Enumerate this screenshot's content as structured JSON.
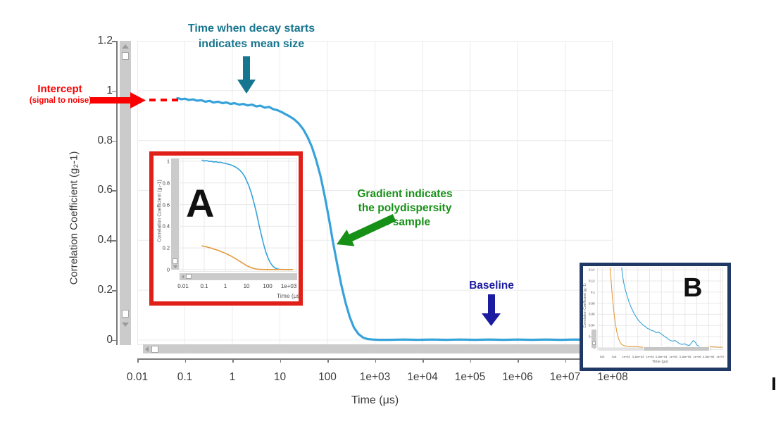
{
  "figure": {
    "xlabel": "Time (μs)",
    "ylabel": "Correlation Coefficient (g₂-1)"
  },
  "annotations": {
    "decay": {
      "line1": "Time when decay starts",
      "line2": "indicates mean size",
      "color": "#17768f"
    },
    "intercept": {
      "title": "Intercept",
      "subtitle": "(signal to noise)",
      "color": "#fb0000"
    },
    "gradient": {
      "line1": "Gradient indicates",
      "line2": "the polydispersity",
      "line3": "of sample",
      "color": "#169016"
    },
    "baseline": {
      "text": "Baseline",
      "color": "#1c1ca0"
    }
  },
  "insets": {
    "a": {
      "label": "A",
      "border_color": "#e02018"
    },
    "b": {
      "label": "B",
      "border_color": "#203864"
    }
  },
  "colors": {
    "curve_blue": "#36a2da",
    "curve_orange": "#e59a3c",
    "grid": "#ebebeb",
    "scrollbar": "#cbcbcb"
  },
  "chart_data": [
    {
      "type": "line",
      "xscale": "log",
      "xlabel": "Time (μs)",
      "ylabel": "Correlation Coefficient (g₂-1)",
      "xlim": [
        0.01,
        100000000.0
      ],
      "ylim": [
        -0.02,
        1.2
      ],
      "grid": true,
      "grid_color": "#ebebeb",
      "legend": "none",
      "xticks": [
        {
          "v": 0.01,
          "label": "0.01"
        },
        {
          "v": 0.1,
          "label": "0.1"
        },
        {
          "v": 1,
          "label": "1"
        },
        {
          "v": 10,
          "label": "10"
        },
        {
          "v": 100,
          "label": "100"
        },
        {
          "v": 1000,
          "label": "1e+03"
        },
        {
          "v": 10000,
          "label": "1e+04"
        },
        {
          "v": 100000,
          "label": "1e+05"
        },
        {
          "v": 1000000,
          "label": "1e+06"
        },
        {
          "v": 10000000,
          "label": "1e+07"
        },
        {
          "v": 100000000,
          "label": "1e+08"
        }
      ],
      "yticks": [
        {
          "v": 0,
          "label": "0"
        },
        {
          "v": 0.2,
          "label": "0.2"
        },
        {
          "v": 0.4,
          "label": "0.4"
        },
        {
          "v": 0.6,
          "label": "0.6"
        },
        {
          "v": 0.8,
          "label": "0.8"
        },
        {
          "v": 1,
          "label": "1"
        },
        {
          "v": 1.2,
          "label": "1.2"
        }
      ],
      "series": [
        {
          "name": "correlation-curve",
          "color": "#36a2da",
          "width": 3.2,
          "points": [
            [
              0.07,
              0.97
            ],
            [
              0.085,
              0.966
            ],
            [
              0.1,
              0.968
            ],
            [
              0.12,
              0.963
            ],
            [
              0.15,
              0.965
            ],
            [
              0.18,
              0.96
            ],
            [
              0.22,
              0.962
            ],
            [
              0.27,
              0.956
            ],
            [
              0.33,
              0.959
            ],
            [
              0.4,
              0.953
            ],
            [
              0.5,
              0.956
            ],
            [
              0.62,
              0.95
            ],
            [
              0.75,
              0.953
            ],
            [
              0.92,
              0.947
            ],
            [
              1.1,
              0.95
            ],
            [
              1.4,
              0.944
            ],
            [
              1.7,
              0.947
            ],
            [
              2.1,
              0.941
            ],
            [
              2.6,
              0.944
            ],
            [
              3.2,
              0.937
            ],
            [
              3.9,
              0.94
            ],
            [
              4.8,
              0.932
            ],
            [
              5.9,
              0.935
            ],
            [
              7.2,
              0.926
            ],
            [
              8.8,
              0.922
            ],
            [
              11,
              0.914
            ],
            [
              13,
              0.906
            ],
            [
              16,
              0.897
            ],
            [
              20,
              0.885
            ],
            [
              25,
              0.868
            ],
            [
              31,
              0.845
            ],
            [
              38,
              0.815
            ],
            [
              47,
              0.775
            ],
            [
              58,
              0.722
            ],
            [
              72,
              0.655
            ],
            [
              88,
              0.575
            ],
            [
              108,
              0.485
            ],
            [
              130,
              0.395
            ],
            [
              160,
              0.305
            ],
            [
              195,
              0.222
            ],
            [
              240,
              0.15
            ],
            [
              295,
              0.092
            ],
            [
              360,
              0.05
            ],
            [
              450,
              0.024
            ],
            [
              560,
              0.01
            ],
            [
              700,
              0.004
            ],
            [
              900,
              0.002
            ],
            [
              1200,
              0.001
            ],
            [
              2000,
              0.001
            ],
            [
              4000,
              0.002
            ],
            [
              8000,
              0.001
            ],
            [
              16000,
              0.002
            ],
            [
              32000,
              0.001
            ],
            [
              63000,
              0.002
            ],
            [
              130000,
              0.001
            ],
            [
              250000,
              0.002
            ],
            [
              500000,
              0.001
            ],
            [
              1000000,
              0.002
            ],
            [
              2000000,
              0.001
            ],
            [
              4000000,
              0.002
            ],
            [
              8000000,
              0.001
            ],
            [
              16000000,
              0.002
            ],
            [
              32000000,
              0.001
            ],
            [
              50000000,
              0.002
            ]
          ]
        }
      ]
    },
    {
      "type": "line",
      "xscale": "log",
      "xlabel": "Time (μs)",
      "ylabel": "Correlation Coefficient (g₂-1)",
      "xlim": [
        0.0068,
        2500
      ],
      "ylim": [
        -0.02,
        1.026
      ],
      "grid": true,
      "grid_color": "#e8e8e8",
      "legend": "none",
      "xticks": [
        {
          "v": 0.01,
          "label": "0.01"
        },
        {
          "v": 0.1,
          "label": "0.1"
        },
        {
          "v": 1,
          "label": "1"
        },
        {
          "v": 10,
          "label": "10"
        },
        {
          "v": 100,
          "label": "100"
        },
        {
          "v": 1000,
          "label": "1e+03"
        }
      ],
      "yticks": [
        {
          "v": 0,
          "label": "0"
        },
        {
          "v": 0.2,
          "label": "0.2"
        },
        {
          "v": 0.4,
          "label": "0.4"
        },
        {
          "v": 0.6,
          "label": "0.6"
        },
        {
          "v": 0.8,
          "label": "0.8"
        },
        {
          "v": 1,
          "label": "1"
        }
      ],
      "series": [
        {
          "name": "sample-blue",
          "color": "#36a2da",
          "width": 1.6,
          "points": [
            [
              0.08,
              1.01
            ],
            [
              0.1,
              1.002
            ],
            [
              0.13,
              1.006
            ],
            [
              0.17,
              0.998
            ],
            [
              0.22,
              1.0
            ],
            [
              0.28,
              0.993
            ],
            [
              0.36,
              0.996
            ],
            [
              0.47,
              0.989
            ],
            [
              0.6,
              0.991
            ],
            [
              0.78,
              0.984
            ],
            [
              1.0,
              0.98
            ],
            [
              1.3,
              0.974
            ],
            [
              1.7,
              0.968
            ],
            [
              2.2,
              0.96
            ],
            [
              2.9,
              0.949
            ],
            [
              3.7,
              0.936
            ],
            [
              4.8,
              0.918
            ],
            [
              6.2,
              0.895
            ],
            [
              8.0,
              0.864
            ],
            [
              10,
              0.824
            ],
            [
              13,
              0.772
            ],
            [
              17,
              0.705
            ],
            [
              22,
              0.625
            ],
            [
              29,
              0.532
            ],
            [
              37,
              0.434
            ],
            [
              48,
              0.338
            ],
            [
              62,
              0.248
            ],
            [
              80,
              0.17
            ],
            [
              104,
              0.108
            ],
            [
              134,
              0.063
            ],
            [
              174,
              0.033
            ],
            [
              225,
              0.015
            ],
            [
              290,
              0.006
            ],
            [
              380,
              0.002
            ],
            [
              600,
              0.001
            ],
            [
              1500,
              0.001
            ]
          ]
        },
        {
          "name": "sample-orange",
          "color": "#e59a3c",
          "width": 1.6,
          "points": [
            [
              0.08,
              0.22
            ],
            [
              0.1,
              0.214
            ],
            [
              0.13,
              0.21
            ],
            [
              0.17,
              0.203
            ],
            [
              0.22,
              0.198
            ],
            [
              0.28,
              0.19
            ],
            [
              0.36,
              0.184
            ],
            [
              0.47,
              0.176
            ],
            [
              0.6,
              0.168
            ],
            [
              0.78,
              0.159
            ],
            [
              1.0,
              0.15
            ],
            [
              1.3,
              0.14
            ],
            [
              1.7,
              0.129
            ],
            [
              2.2,
              0.117
            ],
            [
              2.9,
              0.104
            ],
            [
              3.7,
              0.091
            ],
            [
              4.8,
              0.077
            ],
            [
              6.2,
              0.063
            ],
            [
              8.0,
              0.05
            ],
            [
              10,
              0.038
            ],
            [
              13,
              0.027
            ],
            [
              17,
              0.018
            ],
            [
              22,
              0.011
            ],
            [
              29,
              0.006
            ],
            [
              37,
              0.003
            ],
            [
              48,
              0.002
            ],
            [
              80,
              0.001
            ],
            [
              200,
              0.001
            ],
            [
              1500,
              0.001
            ]
          ]
        }
      ]
    },
    {
      "type": "line",
      "xscale": "log",
      "xlabel": "Time (μs)",
      "ylabel": "Correlation Coefficient (g₂-1)",
      "xlim": [
        60,
        13000000
      ],
      "ylim": [
        -0.004,
        0.144
      ],
      "grid": true,
      "grid_color": "#e8e8e8",
      "legend": "none",
      "xticks": [
        {
          "v": 100,
          "label": "100"
        },
        {
          "v": 316,
          "label": "316"
        },
        {
          "v": 1000,
          "label": "1e+03"
        },
        {
          "v": 3160,
          "label": "3.16e+03"
        },
        {
          "v": 10000,
          "label": "1e+04"
        },
        {
          "v": 31600,
          "label": "3.16e+04"
        },
        {
          "v": 100000,
          "label": "1e+05"
        },
        {
          "v": 316000,
          "label": "3.16e+05"
        },
        {
          "v": 1000000,
          "label": "1e+06"
        },
        {
          "v": 3160000,
          "label": "3.16e+06"
        },
        {
          "v": 10000000,
          "label": "1e+07"
        }
      ],
      "yticks": [
        {
          "v": 0,
          "label": "0"
        },
        {
          "v": 0.02,
          "label": "0.02"
        },
        {
          "v": 0.04,
          "label": "0.04"
        },
        {
          "v": 0.06,
          "label": "0.06"
        },
        {
          "v": 0.08,
          "label": "0.08"
        },
        {
          "v": 0.1,
          "label": "0.1"
        },
        {
          "v": 0.12,
          "label": "0.12"
        },
        {
          "v": 0.14,
          "label": "0.14"
        }
      ],
      "series": [
        {
          "name": "baseline-blue",
          "color": "#36a2da",
          "width": 1.1,
          "points": [
            [
              620,
              0.155
            ],
            [
              700,
              0.132
            ],
            [
              800,
              0.117
            ],
            [
              950,
              0.103
            ],
            [
              1100,
              0.094
            ],
            [
              1300,
              0.084
            ],
            [
              1600,
              0.074
            ],
            [
              1900,
              0.067
            ],
            [
              2300,
              0.06
            ],
            [
              2800,
              0.054
            ],
            [
              3400,
              0.049
            ],
            [
              4200,
              0.045
            ],
            [
              5200,
              0.041
            ],
            [
              6500,
              0.038
            ],
            [
              8000,
              0.035
            ],
            [
              10000,
              0.033
            ],
            [
              12000,
              0.031
            ],
            [
              15000,
              0.03
            ],
            [
              19000,
              0.027
            ],
            [
              24000,
              0.028
            ],
            [
              30000,
              0.025
            ],
            [
              38000,
              0.022
            ],
            [
              48000,
              0.019
            ],
            [
              60000,
              0.016
            ],
            [
              75000,
              0.013
            ],
            [
              95000,
              0.012
            ],
            [
              120000,
              0.013
            ],
            [
              150000,
              0.01
            ],
            [
              190000,
              0.007
            ],
            [
              240000,
              0.006
            ],
            [
              300000,
              0.007
            ],
            [
              380000,
              0.005
            ],
            [
              480000,
              0.004
            ],
            [
              600000,
              0.009
            ],
            [
              700000,
              0.013
            ],
            [
              850000,
              0.01
            ],
            [
              1000000,
              0.005
            ],
            [
              1300000,
              0.002
            ],
            [
              1700000,
              0.001
            ]
          ]
        },
        {
          "name": "baseline-orange",
          "color": "#e59a3c",
          "width": 1.1,
          "points": [
            [
              200,
              0.155
            ],
            [
              230,
              0.125
            ],
            [
              260,
              0.095
            ],
            [
              300,
              0.068
            ],
            [
              350,
              0.045
            ],
            [
              410,
              0.028
            ],
            [
              480,
              0.017
            ],
            [
              560,
              0.01
            ],
            [
              660,
              0.006
            ],
            [
              800,
              0.004
            ],
            [
              1000,
              0.003
            ],
            [
              1500,
              0.002
            ],
            [
              2500,
              0.002
            ],
            [
              5000,
              0.001
            ],
            [
              10000,
              0.002
            ],
            [
              25000,
              0.001
            ],
            [
              60000,
              0.002
            ],
            [
              150000,
              0.001
            ],
            [
              400000,
              0.002
            ],
            [
              1000000,
              0.001
            ],
            [
              3000000,
              0.002
            ],
            [
              8000000,
              0.001
            ],
            [
              12000000,
              0.001
            ]
          ]
        }
      ]
    }
  ]
}
